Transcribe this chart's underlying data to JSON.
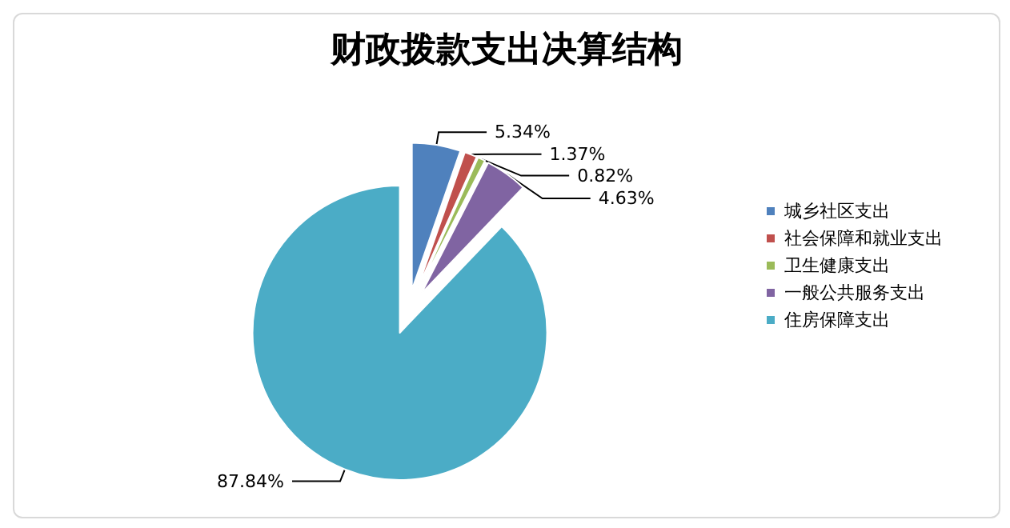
{
  "chart_data": {
    "type": "pie",
    "title": "财政拨款支出决算结构",
    "categories": [
      "城乡社区支出",
      "社会保障和就业支出",
      "卫生健康支出",
      "一般公共服务支出",
      "住房保障支出"
    ],
    "values": [
      5.34,
      1.37,
      0.82,
      4.63,
      87.84
    ],
    "colors": [
      "#4f81bd",
      "#c0504d",
      "#9bbb59",
      "#8064a2",
      "#4bacc6"
    ],
    "value_labels": [
      "5.34%",
      "1.37%",
      "0.82%",
      "4.63%",
      "87.84%"
    ],
    "legend": "right"
  }
}
